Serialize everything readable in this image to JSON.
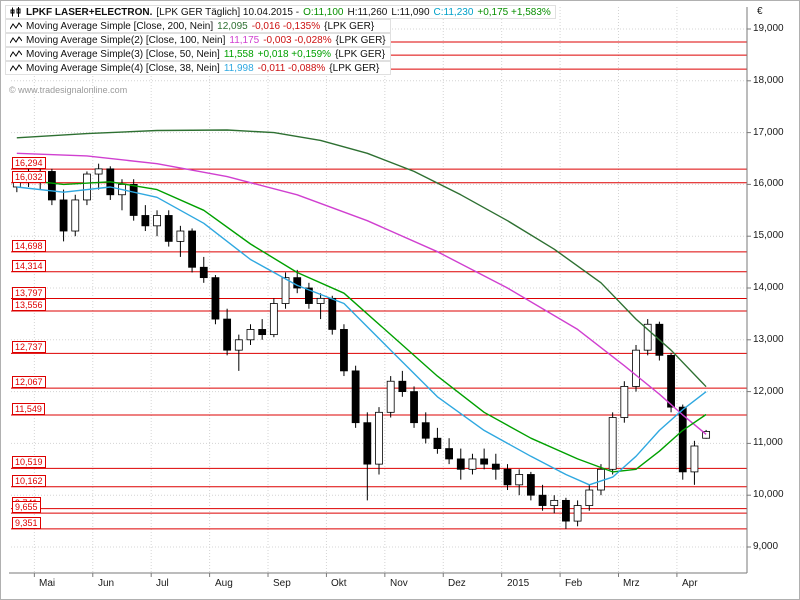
{
  "colors": {
    "candle": "#000000",
    "level_line": "#dd0000",
    "grid": "#d4d4d4",
    "axis_text": "#1a1a1a",
    "watermark_text": "#9a9a9a"
  },
  "legend": {
    "instrument": {
      "title": "LPKF LASER+ELECTRON.",
      "context": "[LPK GER  Täglich]  10.04.2015 -",
      "open": "O:11,100",
      "open_color": "#089000",
      "high": "H:11,260",
      "low": "L:11,090",
      "close": "C:11,230",
      "close_color": "#00a0c8",
      "change": "+0,175 +1,583%",
      "change_color": "#089000"
    },
    "indicators": [
      {
        "name": "Moving Average Simple [Close, 200, Nein]",
        "value": "12,095",
        "change": "-0,016 -0,135%",
        "scope": "{LPK GER}",
        "value_color": "#2e7032",
        "change_color": "#cc1111"
      },
      {
        "name": "Moving Average Simple(2) [Close, 100, Nein]",
        "value": "11,175",
        "change": "-0,003 -0,028%",
        "scope": "{LPK GER}",
        "value_color": "#d040d0",
        "change_color": "#cc1111"
      },
      {
        "name": "Moving Average Simple(3) [Close, 50, Nein]",
        "value": "11,558",
        "change": "+0,018 +0,159%",
        "scope": "{LPK GER}",
        "value_color": "#00a000",
        "change_color": "#00a000"
      },
      {
        "name": "Moving Average Simple(4) [Close, 38, Nein]",
        "value": "11,998",
        "change": "-0,011 -0,088%",
        "scope": "{LPK GER}",
        "value_color": "#2fa8e0",
        "change_color": "#cc1111"
      }
    ]
  },
  "watermark": "© www.tradesignalonline.com",
  "chart_data": {
    "type": "candlestick",
    "title": "LPKF LASER+ELECTRON. [LPK GER] Täglich",
    "date_shown": "10.04.2015",
    "today_ohlc": {
      "open": "11,100",
      "high": "11,260",
      "low": "11,090",
      "close": "11,230",
      "change_abs": "+0,175",
      "change_pct": "+1,583%"
    },
    "y_axis": {
      "unit": "€",
      "min": 9000,
      "max": 19000,
      "tick_step": 1000,
      "ticks": [
        19000,
        18000,
        17000,
        16000,
        15000,
        14000,
        13000,
        12000,
        11000,
        10000,
        9000
      ]
    },
    "x_axis": {
      "labels": [
        "Mai",
        "Jun",
        "Jul",
        "Aug",
        "Sep",
        "Okt",
        "Nov",
        "Dez",
        "2015",
        "Feb",
        "Mrz",
        "Apr"
      ],
      "boundaries": [
        2,
        7,
        12,
        17,
        22,
        27,
        32,
        37,
        42,
        47,
        52,
        57
      ],
      "slots": 63
    },
    "candles": [
      [
        15950,
        16200,
        15850,
        16100
      ],
      [
        16100,
        16300,
        15950,
        16050
      ],
      [
        16050,
        16350,
        15900,
        16250
      ],
      [
        16250,
        16300,
        15600,
        15700
      ],
      [
        15700,
        15900,
        14900,
        15100
      ],
      [
        15100,
        15800,
        15000,
        15700
      ],
      [
        15700,
        16250,
        15600,
        16200
      ],
      [
        16200,
        16400,
        15900,
        16300
      ],
      [
        16300,
        16350,
        15700,
        15800
      ],
      [
        15800,
        16100,
        15500,
        16000
      ],
      [
        16000,
        16100,
        15300,
        15400
      ],
      [
        15400,
        15600,
        15100,
        15200
      ],
      [
        15200,
        15500,
        15000,
        15400
      ],
      [
        15400,
        15500,
        14800,
        14900
      ],
      [
        14900,
        15200,
        14600,
        15100
      ],
      [
        15100,
        15150,
        14300,
        14400
      ],
      [
        14400,
        14600,
        14100,
        14200
      ],
      [
        14200,
        14250,
        13300,
        13400
      ],
      [
        13400,
        13600,
        12700,
        12800
      ],
      [
        12800,
        13100,
        12400,
        13000
      ],
      [
        13000,
        13300,
        12900,
        13200
      ],
      [
        13200,
        13400,
        13000,
        13100
      ],
      [
        13100,
        13800,
        13050,
        13700
      ],
      [
        13700,
        14300,
        13600,
        14200
      ],
      [
        14200,
        14350,
        13900,
        14000
      ],
      [
        14000,
        14100,
        13600,
        13700
      ],
      [
        13700,
        13900,
        13400,
        13800
      ],
      [
        13800,
        13850,
        13100,
        13200
      ],
      [
        13200,
        13300,
        12300,
        12400
      ],
      [
        12400,
        12500,
        11300,
        11400
      ],
      [
        11400,
        11600,
        9900,
        10600
      ],
      [
        10600,
        11700,
        10400,
        11600
      ],
      [
        11600,
        12300,
        11500,
        12200
      ],
      [
        12200,
        12400,
        11900,
        12000
      ],
      [
        12000,
        12100,
        11300,
        11400
      ],
      [
        11400,
        11600,
        11000,
        11100
      ],
      [
        11100,
        11300,
        10800,
        10900
      ],
      [
        10900,
        11100,
        10600,
        10700
      ],
      [
        10700,
        10900,
        10300,
        10500
      ],
      [
        10500,
        10800,
        10400,
        10700
      ],
      [
        10700,
        10900,
        10500,
        10600
      ],
      [
        10600,
        10800,
        10300,
        10500
      ],
      [
        10500,
        10600,
        10100,
        10200
      ],
      [
        10200,
        10500,
        10000,
        10400
      ],
      [
        10400,
        10450,
        9900,
        10000
      ],
      [
        10000,
        10200,
        9700,
        9800
      ],
      [
        9800,
        10000,
        9650,
        9900
      ],
      [
        9900,
        9950,
        9350,
        9500
      ],
      [
        9500,
        9900,
        9400,
        9800
      ],
      [
        9800,
        10200,
        9700,
        10100
      ],
      [
        10100,
        10600,
        10000,
        10500
      ],
      [
        10500,
        11600,
        10400,
        11500
      ],
      [
        11500,
        12200,
        11400,
        12100
      ],
      [
        12100,
        12900,
        12000,
        12800
      ],
      [
        12800,
        13400,
        12700,
        13300
      ],
      [
        13300,
        13350,
        12600,
        12700
      ],
      [
        12700,
        12750,
        11600,
        11700
      ],
      [
        11700,
        11750,
        10300,
        10450
      ],
      [
        10450,
        11050,
        10200,
        10950
      ],
      [
        11100,
        11260,
        11090,
        11230
      ]
    ],
    "moving_averages": [
      {
        "period": 200,
        "color": "#2e7032",
        "current": "12,095",
        "points": [
          [
            0,
            16900
          ],
          [
            6,
            16980
          ],
          [
            12,
            17040
          ],
          [
            18,
            17050
          ],
          [
            22,
            17000
          ],
          [
            26,
            16850
          ],
          [
            30,
            16600
          ],
          [
            34,
            16250
          ],
          [
            38,
            15800
          ],
          [
            42,
            15300
          ],
          [
            46,
            14750
          ],
          [
            50,
            14100
          ],
          [
            53,
            13400
          ],
          [
            56,
            12800
          ],
          [
            59,
            12095
          ]
        ]
      },
      {
        "period": 100,
        "color": "#d040d0",
        "current": "11,175",
        "points": [
          [
            0,
            16600
          ],
          [
            6,
            16550
          ],
          [
            12,
            16400
          ],
          [
            18,
            16150
          ],
          [
            24,
            15800
          ],
          [
            30,
            15300
          ],
          [
            36,
            14700
          ],
          [
            42,
            14000
          ],
          [
            48,
            13200
          ],
          [
            52,
            12500
          ],
          [
            55,
            11950
          ],
          [
            57,
            11550
          ],
          [
            59,
            11175
          ]
        ]
      },
      {
        "period": 50,
        "color": "#00a000",
        "current": "11,558",
        "points": [
          [
            0,
            16100
          ],
          [
            4,
            16000
          ],
          [
            8,
            16050
          ],
          [
            12,
            15900
          ],
          [
            16,
            15500
          ],
          [
            20,
            14850
          ],
          [
            24,
            14300
          ],
          [
            28,
            13900
          ],
          [
            32,
            13100
          ],
          [
            36,
            12300
          ],
          [
            40,
            11600
          ],
          [
            44,
            11100
          ],
          [
            48,
            10700
          ],
          [
            51,
            10450
          ],
          [
            53,
            10500
          ],
          [
            55,
            10850
          ],
          [
            57,
            11250
          ],
          [
            59,
            11558
          ]
        ]
      },
      {
        "period": 38,
        "color": "#2fa8e0",
        "current": "11,998",
        "points": [
          [
            0,
            15950
          ],
          [
            4,
            15850
          ],
          [
            8,
            15950
          ],
          [
            12,
            15750
          ],
          [
            16,
            15250
          ],
          [
            20,
            14550
          ],
          [
            24,
            14050
          ],
          [
            28,
            13700
          ],
          [
            32,
            12800
          ],
          [
            36,
            11900
          ],
          [
            40,
            11250
          ],
          [
            44,
            10750
          ],
          [
            47,
            10400
          ],
          [
            49,
            10200
          ],
          [
            51,
            10350
          ],
          [
            53,
            10750
          ],
          [
            55,
            11250
          ],
          [
            57,
            11650
          ],
          [
            59,
            11998
          ]
        ]
      }
    ],
    "levels": {
      "color": "#dd0000",
      "items": [
        {
          "value": 18748,
          "label": ""
        },
        {
          "value": 18496,
          "label": ""
        },
        {
          "value": 18225,
          "label": ""
        },
        {
          "value": 16294,
          "label": "16,294"
        },
        {
          "value": 16032,
          "label": "16,032"
        },
        {
          "value": 14698,
          "label": "14,698"
        },
        {
          "value": 14314,
          "label": "14,314"
        },
        {
          "value": 13797,
          "label": "13,797"
        },
        {
          "value": 13556,
          "label": "13,556"
        },
        {
          "value": 12737,
          "label": "12,737"
        },
        {
          "value": 12067,
          "label": "12,067"
        },
        {
          "value": 11549,
          "label": "11,549"
        },
        {
          "value": 10519,
          "label": "10,519"
        },
        {
          "value": 10162,
          "label": "10,162"
        },
        {
          "value": 9741,
          "label": "9,741"
        },
        {
          "value": 9655,
          "label": "9,655"
        },
        {
          "value": 9351,
          "label": "9,351"
        }
      ]
    }
  }
}
